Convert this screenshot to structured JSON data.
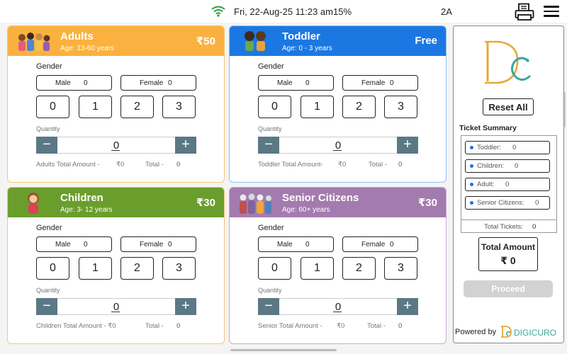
{
  "status": {
    "datetime": "Fri, 22-Aug-25 11:23 am",
    "battery": "15%",
    "indicator": "2A",
    "icons": [
      "wifi-icon",
      "print-icon",
      "menu-icon"
    ]
  },
  "gender_label": "Gender",
  "male_label": "Male",
  "female_label": "Female",
  "quantity_label": "Quantity",
  "total_label": "Total -",
  "quantity_options": [
    "0",
    "1",
    "2",
    "3"
  ],
  "categories": [
    {
      "title": "Adults",
      "age": "Age: 13-60 years",
      "price": "₹50",
      "header_color": "#fbb13f",
      "border_color": "#f7c670",
      "male_count": "0",
      "female_count": "0",
      "quantity": "0",
      "amount_label": "Adults Total Amount -",
      "amount": "₹0",
      "total": "0"
    },
    {
      "title": "Toddler",
      "age": "Age: 0 - 3 years",
      "price": "Free",
      "header_color": "#1b78e2",
      "border_color": "#8cbff5",
      "male_count": "0",
      "female_count": "0",
      "quantity": "0",
      "amount_label": "Toddler Total Amount-",
      "amount": "₹0",
      "total": "0"
    },
    {
      "title": "Children",
      "age": "Age: 3- 12 years",
      "price": "₹30",
      "header_color": "#6a9e2c",
      "border_color": "#f7c670",
      "male_count": "0",
      "female_count": "0",
      "quantity": "0",
      "amount_label": "Children Total Amount - ₹0",
      "amount": "",
      "total": "0"
    },
    {
      "title": "Senior Citizens",
      "age": "Age: 60+ years",
      "price": "₹30",
      "header_color": "#a47bae",
      "border_color": "#c8a9d2",
      "male_count": "0",
      "female_count": "0",
      "quantity": "0",
      "amount_label": "Senior Total Amount -",
      "amount": "₹0",
      "total": "0"
    }
  ],
  "summary": {
    "reset_label": "Reset All",
    "title": "Ticket Summary",
    "items": [
      {
        "label": "Toddler:",
        "value": "0"
      },
      {
        "label": "Children:",
        "value": "0"
      },
      {
        "label": "Adult:",
        "value": "0"
      },
      {
        "label": "Senior Citizens:",
        "value": "0"
      }
    ],
    "total_tickets_label": "Total Tickets:",
    "total_tickets": "0",
    "total_amount_label": "Total Amount",
    "total_amount": "₹ 0",
    "proceed_label": "Proceed",
    "powered_by": "Powered by",
    "brand": "DIGICURO",
    "accent_color": "#1a73e8"
  }
}
